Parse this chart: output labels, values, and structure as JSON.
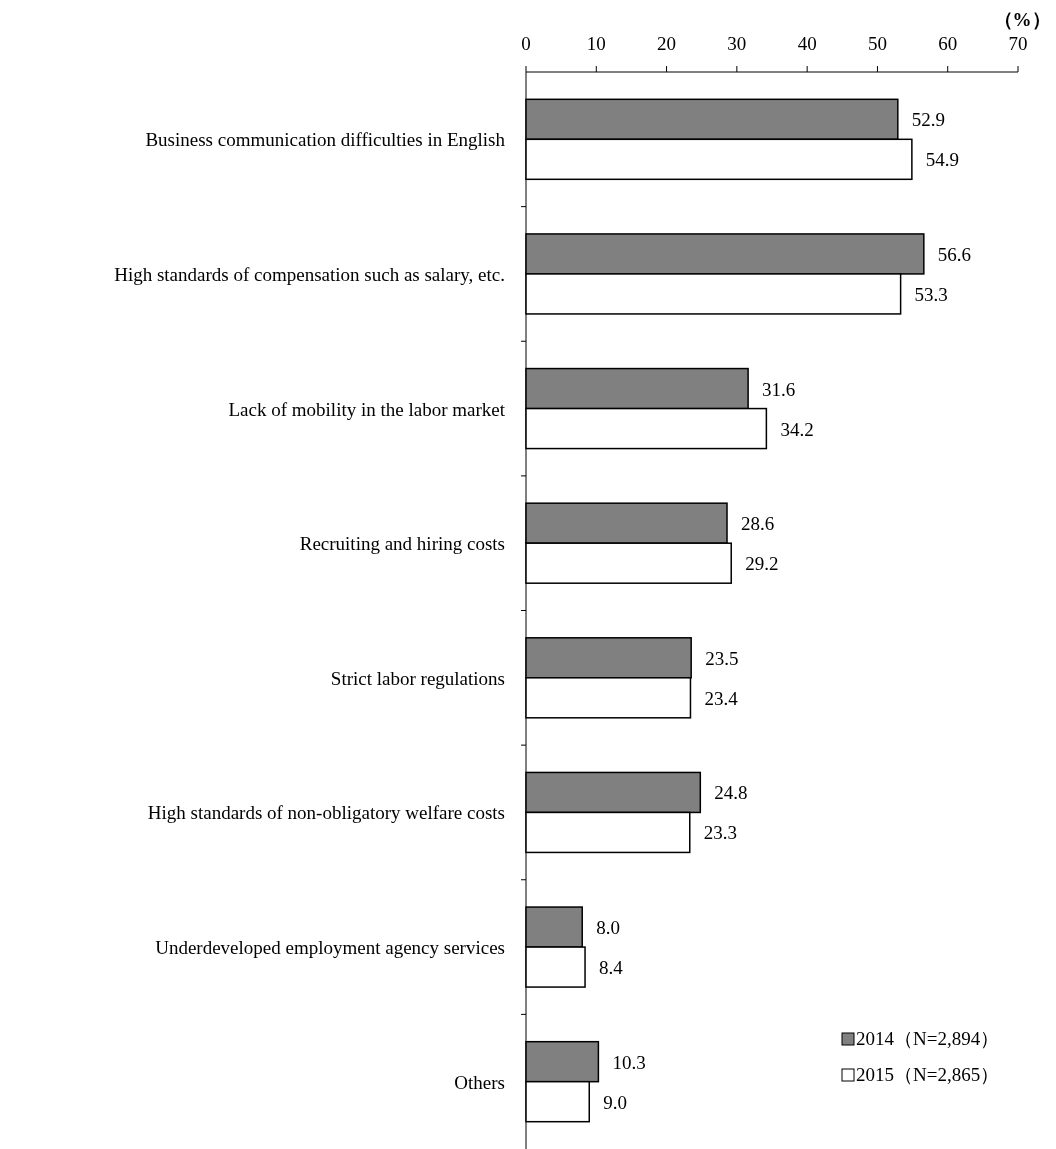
{
  "chart_data": {
    "type": "bar",
    "orientation": "horizontal",
    "xlabel": "（%）",
    "categories": [
      "Business communication difficulties in English",
      "High standards of compensation such as salary, etc.",
      "Lack of mobility in the labor market",
      "Recruiting and hiring costs",
      "Strict labor regulations",
      "High standards of non-obligatory welfare costs",
      "Underdeveloped employment agency services",
      "Others"
    ],
    "series": [
      {
        "name": "2014（N=2,894）",
        "color": "#808080",
        "values": [
          52.9,
          56.6,
          31.6,
          28.6,
          23.5,
          24.8,
          8.0,
          10.3
        ],
        "value_labels": [
          "52.9",
          "56.6",
          "31.6",
          "28.6",
          "23.5",
          "24.8",
          "8.0",
          "10.3"
        ]
      },
      {
        "name": "2015（N=2,865）",
        "color": "#ffffff",
        "values": [
          54.9,
          53.3,
          34.2,
          29.2,
          23.4,
          23.3,
          8.4,
          9.0
        ],
        "value_labels": [
          "54.9",
          "53.3",
          "34.2",
          "29.2",
          "23.4",
          "23.3",
          "8.4",
          "9.0"
        ]
      }
    ],
    "xlim": [
      0,
      70
    ],
    "xticks": [
      0,
      10,
      20,
      30,
      40,
      50,
      60,
      70
    ],
    "legend": "bottom right"
  }
}
